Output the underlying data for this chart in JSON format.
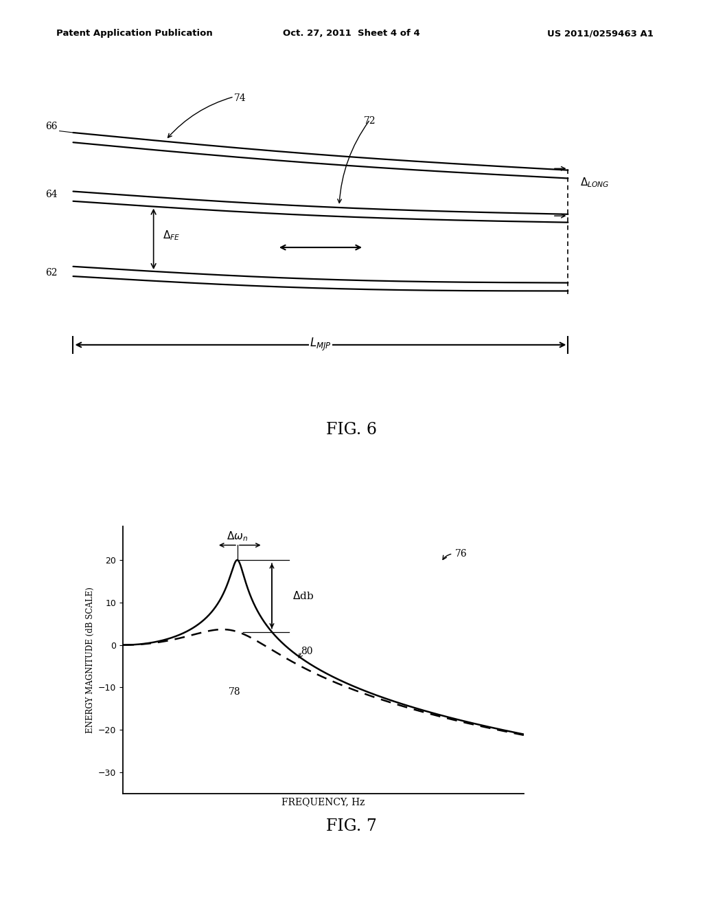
{
  "bg_color": "#ffffff",
  "header_left": "Patent Application Publication",
  "header_mid": "Oct. 27, 2011  Sheet 4 of 4",
  "header_right": "US 2011/0259463 A1",
  "fig6_label": "FIG. 6",
  "fig7_label": "FIG. 7",
  "fig7_ylabel": "ENERGY MAGNITUDE (dB SCALE)",
  "fig7_xlabel": "FREQUENCY, Hz",
  "fig7_yticks": [
    20,
    10,
    0,
    -10,
    -20,
    -30
  ],
  "solid_color": "#000000",
  "dashed_color": "#000000",
  "zeta_solid": 0.08,
  "zeta_dashed": 0.38,
  "peak_fn": 1.0
}
